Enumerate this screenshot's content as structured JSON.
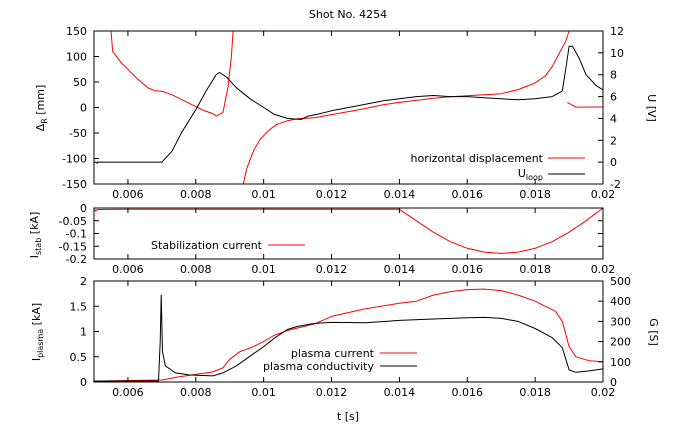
{
  "title": "Shot No. 4254",
  "colors": {
    "red": "#ff0000",
    "black": "#000000"
  },
  "chart_data": [
    {
      "type": "line",
      "ylabel": "ΔR [mm]",
      "ylabel_main": "Δ",
      "ylabel_sub": "R",
      "ylabel_unit": " [mm]",
      "y2label": "U [V]",
      "xlim": [
        0.005,
        0.02
      ],
      "ylim": [
        -150,
        150
      ],
      "y2lim": [
        -2,
        12
      ],
      "x_ticks": [
        "0.006",
        "0.008",
        "0.01",
        "0.012",
        "0.014",
        "0.016",
        "0.018",
        "0.02"
      ],
      "y_ticks": [
        "-150",
        "-100",
        "-50",
        "0",
        "50",
        "100",
        "150"
      ],
      "y2_ticks": [
        "-2",
        "0",
        "2",
        "4",
        "6",
        "8",
        "10",
        "12"
      ],
      "legend_position": "bottom-right",
      "series": [
        {
          "name": "horizontal displacement",
          "color": "#ff0000",
          "axis": "left",
          "segments": [
            [
              [
                0.0055,
                150
              ],
              [
                0.00555,
                110
              ],
              [
                0.0058,
                88
              ],
              [
                0.006,
                75
              ],
              [
                0.0063,
                55
              ],
              [
                0.0066,
                38
              ],
              [
                0.0068,
                33
              ],
              [
                0.007,
                32
              ],
              [
                0.0073,
                25
              ],
              [
                0.0076,
                15
              ],
              [
                0.0079,
                5
              ],
              [
                0.0082,
                -5
              ],
              [
                0.0085,
                -12
              ],
              [
                0.0086,
                -17
              ],
              [
                0.0088,
                -10
              ],
              [
                0.00895,
                40
              ],
              [
                0.00905,
                100
              ],
              [
                0.0091,
                150
              ]
            ],
            [
              [
                0.0094,
                -150
              ],
              [
                0.0095,
                -120
              ],
              [
                0.0097,
                -85
              ],
              [
                0.0099,
                -62
              ],
              [
                0.01,
                -55
              ],
              [
                0.0102,
                -42
              ],
              [
                0.0104,
                -33
              ],
              [
                0.0107,
                -26
              ],
              [
                0.011,
                -22
              ],
              [
                0.0115,
                -20
              ],
              [
                0.012,
                -14
              ],
              [
                0.0125,
                -8
              ],
              [
                0.013,
                -2
              ],
              [
                0.0135,
                5
              ],
              [
                0.014,
                10
              ],
              [
                0.0145,
                14
              ],
              [
                0.015,
                18
              ],
              [
                0.0155,
                21
              ],
              [
                0.016,
                23
              ],
              [
                0.0165,
                25
              ],
              [
                0.017,
                27
              ],
              [
                0.0175,
                35
              ],
              [
                0.018,
                48
              ],
              [
                0.0183,
                62
              ],
              [
                0.0185,
                80
              ],
              [
                0.0187,
                105
              ],
              [
                0.0189,
                130
              ],
              [
                0.019,
                150
              ]
            ],
            [
              [
                0.01895,
                10
              ],
              [
                0.0192,
                0.8
              ],
              [
                0.02,
                0.9
              ]
            ]
          ]
        },
        {
          "name": "U_loop",
          "color": "#000000",
          "axis": "right",
          "segments": [
            [
              [
                0.005,
                0
              ],
              [
                0.00505,
                0
              ],
              [
                0.0051,
                -0.1
              ],
              [
                0.0051,
                0
              ],
              [
                0.0052,
                0
              ],
              [
                0.007,
                0
              ],
              [
                0.0073,
                1
              ],
              [
                0.0076,
                2.8
              ],
              [
                0.008,
                4.8
              ],
              [
                0.0083,
                6.5
              ],
              [
                0.0086,
                8
              ],
              [
                0.0087,
                8.2
              ],
              [
                0.0089,
                7.8
              ],
              [
                0.0092,
                6.8
              ],
              [
                0.0096,
                5.8
              ],
              [
                0.01,
                5
              ],
              [
                0.0103,
                4.4
              ],
              [
                0.0107,
                4
              ],
              [
                0.0111,
                3.9
              ],
              [
                0.0113,
                4.2
              ],
              [
                0.0116,
                4.4
              ],
              [
                0.012,
                4.7
              ],
              [
                0.0125,
                5
              ],
              [
                0.013,
                5.3
              ],
              [
                0.0135,
                5.6
              ],
              [
                0.014,
                5.8
              ],
              [
                0.0145,
                6
              ],
              [
                0.015,
                6.1
              ],
              [
                0.0155,
                6
              ],
              [
                0.016,
                6
              ],
              [
                0.0165,
                5.9
              ],
              [
                0.017,
                5.8
              ],
              [
                0.0175,
                5.7
              ],
              [
                0.018,
                5.8
              ],
              [
                0.0185,
                6
              ],
              [
                0.0188,
                6.5
              ],
              [
                0.0189,
                8.5
              ],
              [
                0.019,
                10.6
              ],
              [
                0.0191,
                10.6
              ],
              [
                0.0193,
                9.5
              ],
              [
                0.0195,
                8
              ],
              [
                0.0198,
                7
              ],
              [
                0.02,
                6.6
              ]
            ]
          ]
        }
      ]
    },
    {
      "type": "line",
      "ylabel": "Istab [kA]",
      "ylabel_main": "I",
      "ylabel_sub": "stab",
      "ylabel_unit": " [kA]",
      "xlim": [
        0.005,
        0.02
      ],
      "ylim": [
        -0.2,
        0
      ],
      "x_ticks": [
        "0.006",
        "0.008",
        "0.01",
        "0.012",
        "0.014",
        "0.016",
        "0.018",
        "0.02"
      ],
      "y_ticks": [
        "-0.2",
        "-0.15",
        "-0.1",
        "-0.05",
        "0"
      ],
      "legend_position": "bottom-left",
      "series": [
        {
          "name": "Stabilization current",
          "color": "#ff0000",
          "axis": "left",
          "segments": [
            [
              [
                0.005,
                -0.003
              ],
              [
                0.00505,
                -0.012
              ],
              [
                0.0051,
                -0.006
              ],
              [
                0.0052,
                -0.006
              ],
              [
                0.006,
                -0.005
              ],
              [
                0.008,
                -0.005
              ],
              [
                0.01,
                -0.005
              ],
              [
                0.012,
                -0.005
              ],
              [
                0.014,
                -0.005
              ],
              [
                0.0145,
                -0.05
              ],
              [
                0.015,
                -0.095
              ],
              [
                0.0155,
                -0.132
              ],
              [
                0.016,
                -0.158
              ],
              [
                0.0165,
                -0.173
              ],
              [
                0.017,
                -0.178
              ],
              [
                0.0175,
                -0.173
              ],
              [
                0.018,
                -0.158
              ],
              [
                0.0185,
                -0.132
              ],
              [
                0.019,
                -0.095
              ],
              [
                0.0195,
                -0.05
              ],
              [
                0.02,
                0
              ]
            ]
          ]
        }
      ]
    },
    {
      "type": "line",
      "ylabel": "Iplasma [kA]",
      "ylabel_main": "I",
      "ylabel_sub": "plasma",
      "ylabel_unit": " [kA]",
      "y2label": "G [S]",
      "xlabel": "t [s]",
      "xlim": [
        0.005,
        0.02
      ],
      "ylim": [
        0,
        2
      ],
      "y2lim": [
        0,
        500
      ],
      "x_ticks": [
        "0.006",
        "0.008",
        "0.01",
        "0.012",
        "0.014",
        "0.016",
        "0.018",
        "0.02"
      ],
      "y_ticks": [
        "0",
        "0.5",
        "1",
        "1.5",
        "2"
      ],
      "y2_ticks": [
        "0",
        "100",
        "200",
        "300",
        "400",
        "500"
      ],
      "legend_position": "center",
      "series": [
        {
          "name": "plasma current",
          "color": "#ff0000",
          "axis": "left",
          "segments": [
            [
              [
                0.005,
                0
              ],
              [
                0.0052,
                0.02
              ],
              [
                0.006,
                0.03
              ],
              [
                0.007,
                0.04
              ],
              [
                0.0075,
                0.1
              ],
              [
                0.008,
                0.15
              ],
              [
                0.0085,
                0.2
              ],
              [
                0.0088,
                0.28
              ],
              [
                0.009,
                0.45
              ],
              [
                0.0093,
                0.6
              ],
              [
                0.0097,
                0.7
              ],
              [
                0.01,
                0.8
              ],
              [
                0.0103,
                0.92
              ],
              [
                0.0107,
                1.02
              ],
              [
                0.011,
                1.07
              ],
              [
                0.0115,
                1.15
              ],
              [
                0.012,
                1.3
              ],
              [
                0.013,
                1.45
              ],
              [
                0.014,
                1.56
              ],
              [
                0.0145,
                1.6
              ],
              [
                0.015,
                1.72
              ],
              [
                0.0155,
                1.79
              ],
              [
                0.016,
                1.83
              ],
              [
                0.0165,
                1.84
              ],
              [
                0.017,
                1.81
              ],
              [
                0.0175,
                1.72
              ],
              [
                0.018,
                1.6
              ],
              [
                0.0183,
                1.5
              ],
              [
                0.0186,
                1.4
              ],
              [
                0.0188,
                1.2
              ],
              [
                0.019,
                0.7
              ],
              [
                0.0192,
                0.5
              ],
              [
                0.0196,
                0.42
              ],
              [
                0.02,
                0.4
              ]
            ]
          ]
        },
        {
          "name": "plasma conductivity",
          "color": "#000000",
          "axis": "right",
          "segments": [
            [
              [
                0.005,
                5
              ],
              [
                0.0069,
                5
              ],
              [
                0.00695,
                200
              ],
              [
                0.00698,
                430
              ],
              [
                0.00702,
                150
              ],
              [
                0.0071,
                80
              ],
              [
                0.0074,
                45
              ],
              [
                0.0078,
                35
              ],
              [
                0.0082,
                32
              ],
              [
                0.0085,
                30
              ],
              [
                0.0088,
                45
              ],
              [
                0.0092,
                80
              ],
              [
                0.0097,
                140
              ],
              [
                0.01,
                175
              ],
              [
                0.0103,
                215
              ],
              [
                0.0107,
                260
              ],
              [
                0.011,
                275
              ],
              [
                0.0115,
                290
              ],
              [
                0.012,
                295
              ],
              [
                0.013,
                293
              ],
              [
                0.014,
                305
              ],
              [
                0.015,
                312
              ],
              [
                0.016,
                318
              ],
              [
                0.0165,
                320
              ],
              [
                0.017,
                315
              ],
              [
                0.0175,
                300
              ],
              [
                0.018,
                265
              ],
              [
                0.0185,
                220
              ],
              [
                0.0188,
                170
              ],
              [
                0.019,
                60
              ],
              [
                0.0192,
                48
              ],
              [
                0.0196,
                55
              ],
              [
                0.02,
                65
              ]
            ]
          ]
        }
      ]
    }
  ]
}
